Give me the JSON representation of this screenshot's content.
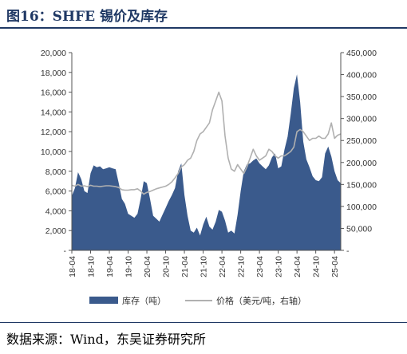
{
  "figure_label": "图16：",
  "figure_title": "SHFE 锡价及库存",
  "source": "数据来源：Wind，东吴证券研究所",
  "chart_data": {
    "type": "area+line",
    "title": "SHFE 锡价及库存",
    "y_left": {
      "min": 0,
      "max": 20000,
      "ticks": [
        "-",
        "2,000",
        "4,000",
        "6,000",
        "8,000",
        "10,000",
        "12,000",
        "14,000",
        "16,000",
        "18,000",
        "20,000"
      ]
    },
    "y_right": {
      "min": 0,
      "max": 450000,
      "ticks": [
        "-",
        "50,000",
        "100,000",
        "150,000",
        "200,000",
        "250,000",
        "300,000",
        "350,000",
        "400,000",
        "450,000"
      ]
    },
    "x_ticks": [
      "18-04",
      "18-10",
      "19-04",
      "19-10",
      "20-04",
      "20-10",
      "21-04",
      "21-10",
      "22-04",
      "22-10",
      "23-04",
      "23-10",
      "24-04",
      "24-10",
      "25-04"
    ],
    "x_range": [
      "2018-04",
      "2025-06"
    ],
    "grid": false,
    "legend_position": "bottom",
    "colors": {
      "inventory": "#3a5a8c",
      "price": "#b0b0b0"
    },
    "series": [
      {
        "name": "库存（吨）",
        "axis": "left",
        "style": "area",
        "x": [
          "2018-04",
          "2018-05",
          "2018-06",
          "2018-07",
          "2018-08",
          "2018-09",
          "2018-10",
          "2018-11",
          "2018-12",
          "2019-01",
          "2019-02",
          "2019-03",
          "2019-04",
          "2019-05",
          "2019-06",
          "2019-07",
          "2019-08",
          "2019-09",
          "2019-10",
          "2019-11",
          "2019-12",
          "2020-01",
          "2020-02",
          "2020-03",
          "2020-04",
          "2020-05",
          "2020-06",
          "2020-07",
          "2020-08",
          "2020-09",
          "2020-10",
          "2020-11",
          "2020-12",
          "2021-01",
          "2021-02",
          "2021-03",
          "2021-04",
          "2021-05",
          "2021-06",
          "2021-07",
          "2021-08",
          "2021-09",
          "2021-10",
          "2021-11",
          "2021-12",
          "2022-01",
          "2022-02",
          "2022-03",
          "2022-04",
          "2022-05",
          "2022-06",
          "2022-07",
          "2022-08",
          "2022-09",
          "2022-10",
          "2022-11",
          "2022-12",
          "2023-01",
          "2023-02",
          "2023-03",
          "2023-04",
          "2023-05",
          "2023-06",
          "2023-07",
          "2023-08",
          "2023-09",
          "2023-10",
          "2023-11",
          "2023-12",
          "2024-01",
          "2024-02",
          "2024-03",
          "2024-04",
          "2024-05",
          "2024-06",
          "2024-07",
          "2024-08",
          "2024-09",
          "2024-10",
          "2024-11",
          "2024-12",
          "2025-01",
          "2025-02",
          "2025-03",
          "2025-04",
          "2025-05",
          "2025-06"
        ],
        "values": [
          5500,
          6300,
          7900,
          7200,
          6000,
          5800,
          7800,
          8600,
          8400,
          8500,
          8200,
          8300,
          8400,
          8300,
          8200,
          6800,
          5200,
          4700,
          3700,
          3500,
          3300,
          3700,
          5200,
          7000,
          6800,
          5200,
          3500,
          3200,
          2900,
          3600,
          4300,
          5000,
          5600,
          6300,
          8000,
          8800,
          5600,
          3500,
          2000,
          1800,
          2300,
          1500,
          2600,
          3400,
          2400,
          2100,
          2900,
          4100,
          3900,
          3000,
          1800,
          2000,
          1700,
          3600,
          6000,
          8000,
          8700,
          8800,
          9100,
          9300,
          8800,
          8500,
          8200,
          8600,
          9400,
          9800,
          8300,
          8500,
          10200,
          11500,
          13800,
          16400,
          17800,
          15000,
          11000,
          9200,
          8400,
          7500,
          7100,
          7000,
          7400,
          9800,
          10500,
          9500,
          8000,
          7100,
          6800
        ]
      },
      {
        "name": "价格（美元/吨，右轴）",
        "axis": "right",
        "style": "line",
        "x": [
          "2018-04",
          "2018-05",
          "2018-06",
          "2018-07",
          "2018-08",
          "2018-09",
          "2018-10",
          "2018-11",
          "2018-12",
          "2019-01",
          "2019-02",
          "2019-03",
          "2019-04",
          "2019-05",
          "2019-06",
          "2019-07",
          "2019-08",
          "2019-09",
          "2019-10",
          "2019-11",
          "2019-12",
          "2020-01",
          "2020-02",
          "2020-03",
          "2020-04",
          "2020-05",
          "2020-06",
          "2020-07",
          "2020-08",
          "2020-09",
          "2020-10",
          "2020-11",
          "2020-12",
          "2021-01",
          "2021-02",
          "2021-03",
          "2021-04",
          "2021-05",
          "2021-06",
          "2021-07",
          "2021-08",
          "2021-09",
          "2021-10",
          "2021-11",
          "2021-12",
          "2022-01",
          "2022-02",
          "2022-03",
          "2022-04",
          "2022-05",
          "2022-06",
          "2022-07",
          "2022-08",
          "2022-09",
          "2022-10",
          "2022-11",
          "2022-12",
          "2023-01",
          "2023-02",
          "2023-03",
          "2023-04",
          "2023-05",
          "2023-06",
          "2023-07",
          "2023-08",
          "2023-09",
          "2023-10",
          "2023-11",
          "2023-12",
          "2024-01",
          "2024-02",
          "2024-03",
          "2024-04",
          "2024-05",
          "2024-06",
          "2024-07",
          "2024-08",
          "2024-09",
          "2024-10",
          "2024-11",
          "2024-12",
          "2025-01",
          "2025-02",
          "2025-03",
          "2025-04",
          "2025-05",
          "2025-06"
        ],
        "values": [
          148000,
          146000,
          150000,
          146000,
          147000,
          145000,
          148000,
          146000,
          146000,
          145000,
          146000,
          147000,
          147000,
          146000,
          145000,
          143000,
          138000,
          137000,
          137000,
          138000,
          138000,
          140000,
          135000,
          128000,
          132000,
          134000,
          137000,
          140000,
          142000,
          144000,
          146000,
          150000,
          156000,
          165000,
          175000,
          190000,
          195000,
          205000,
          210000,
          225000,
          250000,
          265000,
          270000,
          280000,
          290000,
          320000,
          340000,
          360000,
          340000,
          260000,
          210000,
          185000,
          180000,
          195000,
          185000,
          175000,
          190000,
          210000,
          230000,
          215000,
          205000,
          210000,
          215000,
          230000,
          225000,
          215000,
          210000,
          215000,
          215000,
          220000,
          225000,
          235000,
          270000,
          275000,
          270000,
          260000,
          250000,
          255000,
          255000,
          260000,
          255000,
          255000,
          265000,
          290000,
          255000,
          262000,
          265000
        ]
      }
    ]
  }
}
